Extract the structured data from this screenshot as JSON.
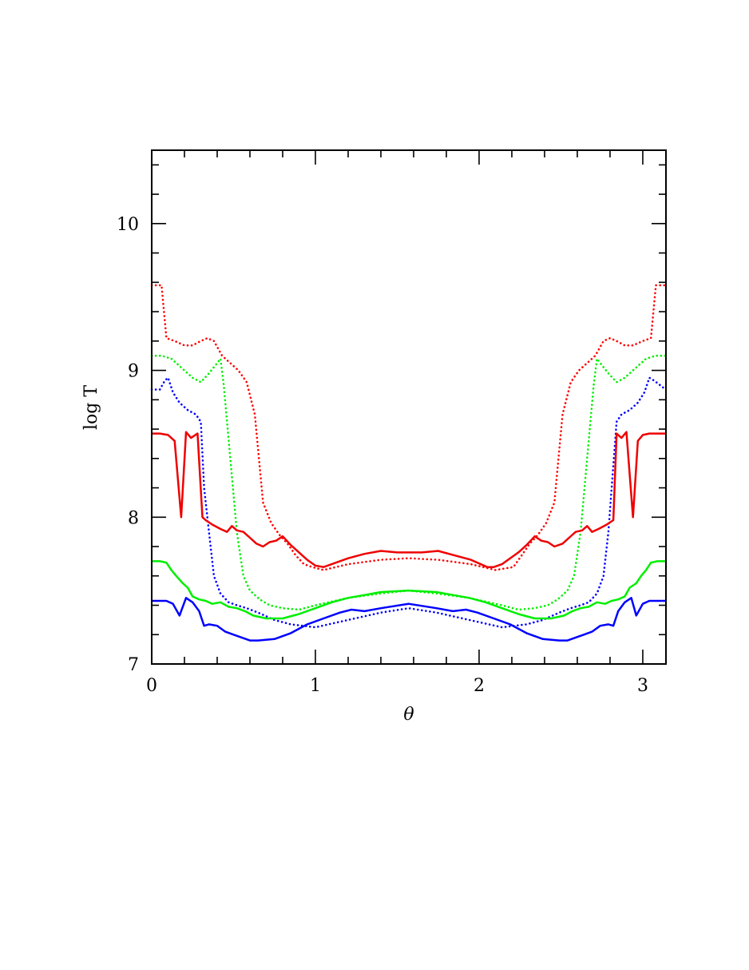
{
  "chart_data": {
    "type": "line",
    "title": "",
    "xlabel": "θ",
    "ylabel": "log T",
    "xlim": [
      0,
      3.1416
    ],
    "ylim": [
      7,
      10.5
    ],
    "xticks": [
      0,
      1,
      2,
      3
    ],
    "yticks": [
      7,
      8,
      9,
      10
    ],
    "grid": false,
    "legend": "none",
    "series": [
      {
        "color": "#ff0000",
        "style": "dotted",
        "x": [
          0.0,
          0.06,
          0.09,
          0.14,
          0.2,
          0.25,
          0.3,
          0.34,
          0.38,
          0.43,
          0.48,
          0.53,
          0.58,
          0.63,
          0.68,
          0.73,
          0.78,
          0.83,
          0.88,
          0.93,
          0.98,
          1.05,
          1.2,
          1.4,
          1.57,
          1.75,
          1.95,
          2.1,
          2.21,
          2.26,
          2.31,
          2.36,
          2.41,
          2.46,
          2.51,
          2.56,
          2.61,
          2.66,
          2.71,
          2.76,
          2.8,
          2.84,
          2.89,
          2.94,
          3.0,
          3.05,
          3.08,
          3.14
        ],
        "y": [
          9.58,
          9.58,
          9.22,
          9.2,
          9.17,
          9.17,
          9.2,
          9.22,
          9.2,
          9.1,
          9.05,
          9.0,
          8.92,
          8.7,
          8.1,
          7.96,
          7.88,
          7.82,
          7.74,
          7.68,
          7.66,
          7.64,
          7.68,
          7.71,
          7.72,
          7.71,
          7.68,
          7.64,
          7.66,
          7.74,
          7.82,
          7.88,
          7.96,
          8.1,
          8.7,
          8.92,
          9.0,
          9.05,
          9.1,
          9.2,
          9.22,
          9.2,
          9.17,
          9.17,
          9.2,
          9.22,
          9.58,
          9.58
        ]
      },
      {
        "color": "#00ee00",
        "style": "dotted",
        "x": [
          0.0,
          0.06,
          0.12,
          0.18,
          0.25,
          0.3,
          0.35,
          0.4,
          0.42,
          0.44,
          0.48,
          0.52,
          0.56,
          0.6,
          0.66,
          0.72,
          0.8,
          0.9,
          1.0,
          1.2,
          1.4,
          1.57,
          1.74,
          1.94,
          2.14,
          2.24,
          2.34,
          2.42,
          2.48,
          2.54,
          2.58,
          2.62,
          2.66,
          2.7,
          2.72,
          2.74,
          2.79,
          2.84,
          2.89,
          2.96,
          3.02,
          3.08,
          3.14
        ],
        "y": [
          9.1,
          9.1,
          9.08,
          9.02,
          8.95,
          8.92,
          8.98,
          9.05,
          9.08,
          8.9,
          8.4,
          7.9,
          7.6,
          7.5,
          7.44,
          7.4,
          7.38,
          7.37,
          7.4,
          7.45,
          7.48,
          7.5,
          7.48,
          7.45,
          7.4,
          7.37,
          7.38,
          7.4,
          7.44,
          7.5,
          7.6,
          7.9,
          8.4,
          8.9,
          9.08,
          9.05,
          8.98,
          8.92,
          8.95,
          9.02,
          9.08,
          9.1,
          9.1
        ]
      },
      {
        "color": "#0000ff",
        "style": "dotted",
        "x": [
          0.0,
          0.05,
          0.08,
          0.1,
          0.13,
          0.17,
          0.22,
          0.27,
          0.3,
          0.32,
          0.35,
          0.38,
          0.42,
          0.47,
          0.52,
          0.58,
          0.65,
          0.75,
          0.85,
          1.0,
          1.2,
          1.4,
          1.57,
          1.74,
          1.94,
          2.14,
          2.29,
          2.39,
          2.49,
          2.56,
          2.62,
          2.67,
          2.72,
          2.76,
          2.79,
          2.81,
          2.84,
          2.87,
          2.92,
          2.97,
          3.01,
          3.04,
          3.07,
          3.14
        ],
        "y": [
          8.87,
          8.87,
          8.93,
          8.95,
          8.85,
          8.78,
          8.73,
          8.7,
          8.65,
          8.2,
          7.9,
          7.6,
          7.48,
          7.42,
          7.4,
          7.38,
          7.35,
          7.3,
          7.27,
          7.25,
          7.3,
          7.35,
          7.38,
          7.35,
          7.3,
          7.25,
          7.27,
          7.3,
          7.35,
          7.38,
          7.4,
          7.42,
          7.48,
          7.6,
          7.9,
          8.2,
          8.65,
          8.7,
          8.73,
          8.78,
          8.85,
          8.95,
          8.93,
          8.87
        ]
      },
      {
        "color": "#ee0000",
        "style": "solid",
        "x": [
          0.0,
          0.05,
          0.1,
          0.14,
          0.18,
          0.21,
          0.24,
          0.28,
          0.31,
          0.33,
          0.37,
          0.42,
          0.46,
          0.49,
          0.52,
          0.56,
          0.6,
          0.64,
          0.68,
          0.72,
          0.76,
          0.8,
          0.85,
          0.9,
          0.95,
          1.0,
          1.05,
          1.1,
          1.2,
          1.3,
          1.4,
          1.5,
          1.57,
          1.65,
          1.75,
          1.85,
          1.95,
          2.05,
          2.09,
          2.14,
          2.19,
          2.24,
          2.29,
          2.34,
          2.38,
          2.42,
          2.46,
          2.51,
          2.55,
          2.59,
          2.63,
          2.66,
          2.69,
          2.73,
          2.78,
          2.82,
          2.84,
          2.87,
          2.9,
          2.94,
          2.97,
          3.0,
          3.04,
          3.09,
          3.14
        ],
        "y": [
          8.57,
          8.57,
          8.56,
          8.52,
          8.0,
          8.58,
          8.54,
          8.57,
          8.0,
          7.98,
          7.95,
          7.92,
          7.9,
          7.94,
          7.91,
          7.9,
          7.86,
          7.82,
          7.8,
          7.83,
          7.84,
          7.87,
          7.81,
          7.76,
          7.71,
          7.67,
          7.66,
          7.68,
          7.72,
          7.75,
          7.77,
          7.76,
          7.76,
          7.76,
          7.77,
          7.74,
          7.71,
          7.66,
          7.66,
          7.68,
          7.72,
          7.76,
          7.81,
          7.87,
          7.84,
          7.83,
          7.8,
          7.82,
          7.86,
          7.9,
          7.91,
          7.94,
          7.9,
          7.92,
          7.95,
          7.98,
          8.57,
          8.54,
          8.58,
          8.0,
          8.52,
          8.56,
          8.57,
          8.57,
          8.57
        ]
      },
      {
        "color": "#00ee00",
        "style": "solid",
        "x": [
          0.0,
          0.05,
          0.09,
          0.12,
          0.15,
          0.19,
          0.22,
          0.25,
          0.29,
          0.33,
          0.37,
          0.42,
          0.47,
          0.52,
          0.57,
          0.62,
          0.7,
          0.8,
          0.9,
          1.0,
          1.1,
          1.2,
          1.3,
          1.4,
          1.57,
          1.74,
          1.84,
          1.94,
          2.04,
          2.14,
          2.24,
          2.34,
          2.44,
          2.52,
          2.57,
          2.62,
          2.67,
          2.72,
          2.77,
          2.81,
          2.85,
          2.89,
          2.92,
          2.96,
          2.99,
          3.02,
          3.05,
          3.09,
          3.14
        ],
        "y": [
          7.7,
          7.7,
          7.69,
          7.64,
          7.6,
          7.55,
          7.52,
          7.46,
          7.44,
          7.43,
          7.41,
          7.42,
          7.39,
          7.38,
          7.36,
          7.33,
          7.31,
          7.31,
          7.34,
          7.38,
          7.42,
          7.45,
          7.47,
          7.49,
          7.5,
          7.49,
          7.47,
          7.45,
          7.42,
          7.38,
          7.34,
          7.31,
          7.31,
          7.33,
          7.36,
          7.38,
          7.39,
          7.42,
          7.41,
          7.43,
          7.44,
          7.46,
          7.52,
          7.55,
          7.6,
          7.64,
          7.69,
          7.7,
          7.7
        ]
      },
      {
        "color": "#0000ff",
        "style": "solid",
        "x": [
          0.0,
          0.05,
          0.09,
          0.13,
          0.17,
          0.21,
          0.25,
          0.29,
          0.32,
          0.35,
          0.4,
          0.45,
          0.5,
          0.55,
          0.6,
          0.65,
          0.75,
          0.85,
          0.95,
          1.05,
          1.15,
          1.22,
          1.3,
          1.4,
          1.57,
          1.74,
          1.84,
          1.92,
          1.99,
          2.09,
          2.19,
          2.29,
          2.39,
          2.49,
          2.54,
          2.59,
          2.64,
          2.69,
          2.74,
          2.79,
          2.82,
          2.85,
          2.89,
          2.93,
          2.96,
          3.0,
          3.04,
          3.08,
          3.14
        ],
        "y": [
          7.43,
          7.43,
          7.43,
          7.41,
          7.33,
          7.45,
          7.42,
          7.36,
          7.26,
          7.27,
          7.26,
          7.22,
          7.2,
          7.18,
          7.16,
          7.16,
          7.17,
          7.21,
          7.27,
          7.31,
          7.35,
          7.37,
          7.36,
          7.38,
          7.41,
          7.38,
          7.36,
          7.37,
          7.35,
          7.31,
          7.27,
          7.21,
          7.17,
          7.16,
          7.16,
          7.18,
          7.2,
          7.22,
          7.26,
          7.27,
          7.26,
          7.36,
          7.42,
          7.45,
          7.33,
          7.41,
          7.43,
          7.43,
          7.43
        ]
      }
    ]
  }
}
